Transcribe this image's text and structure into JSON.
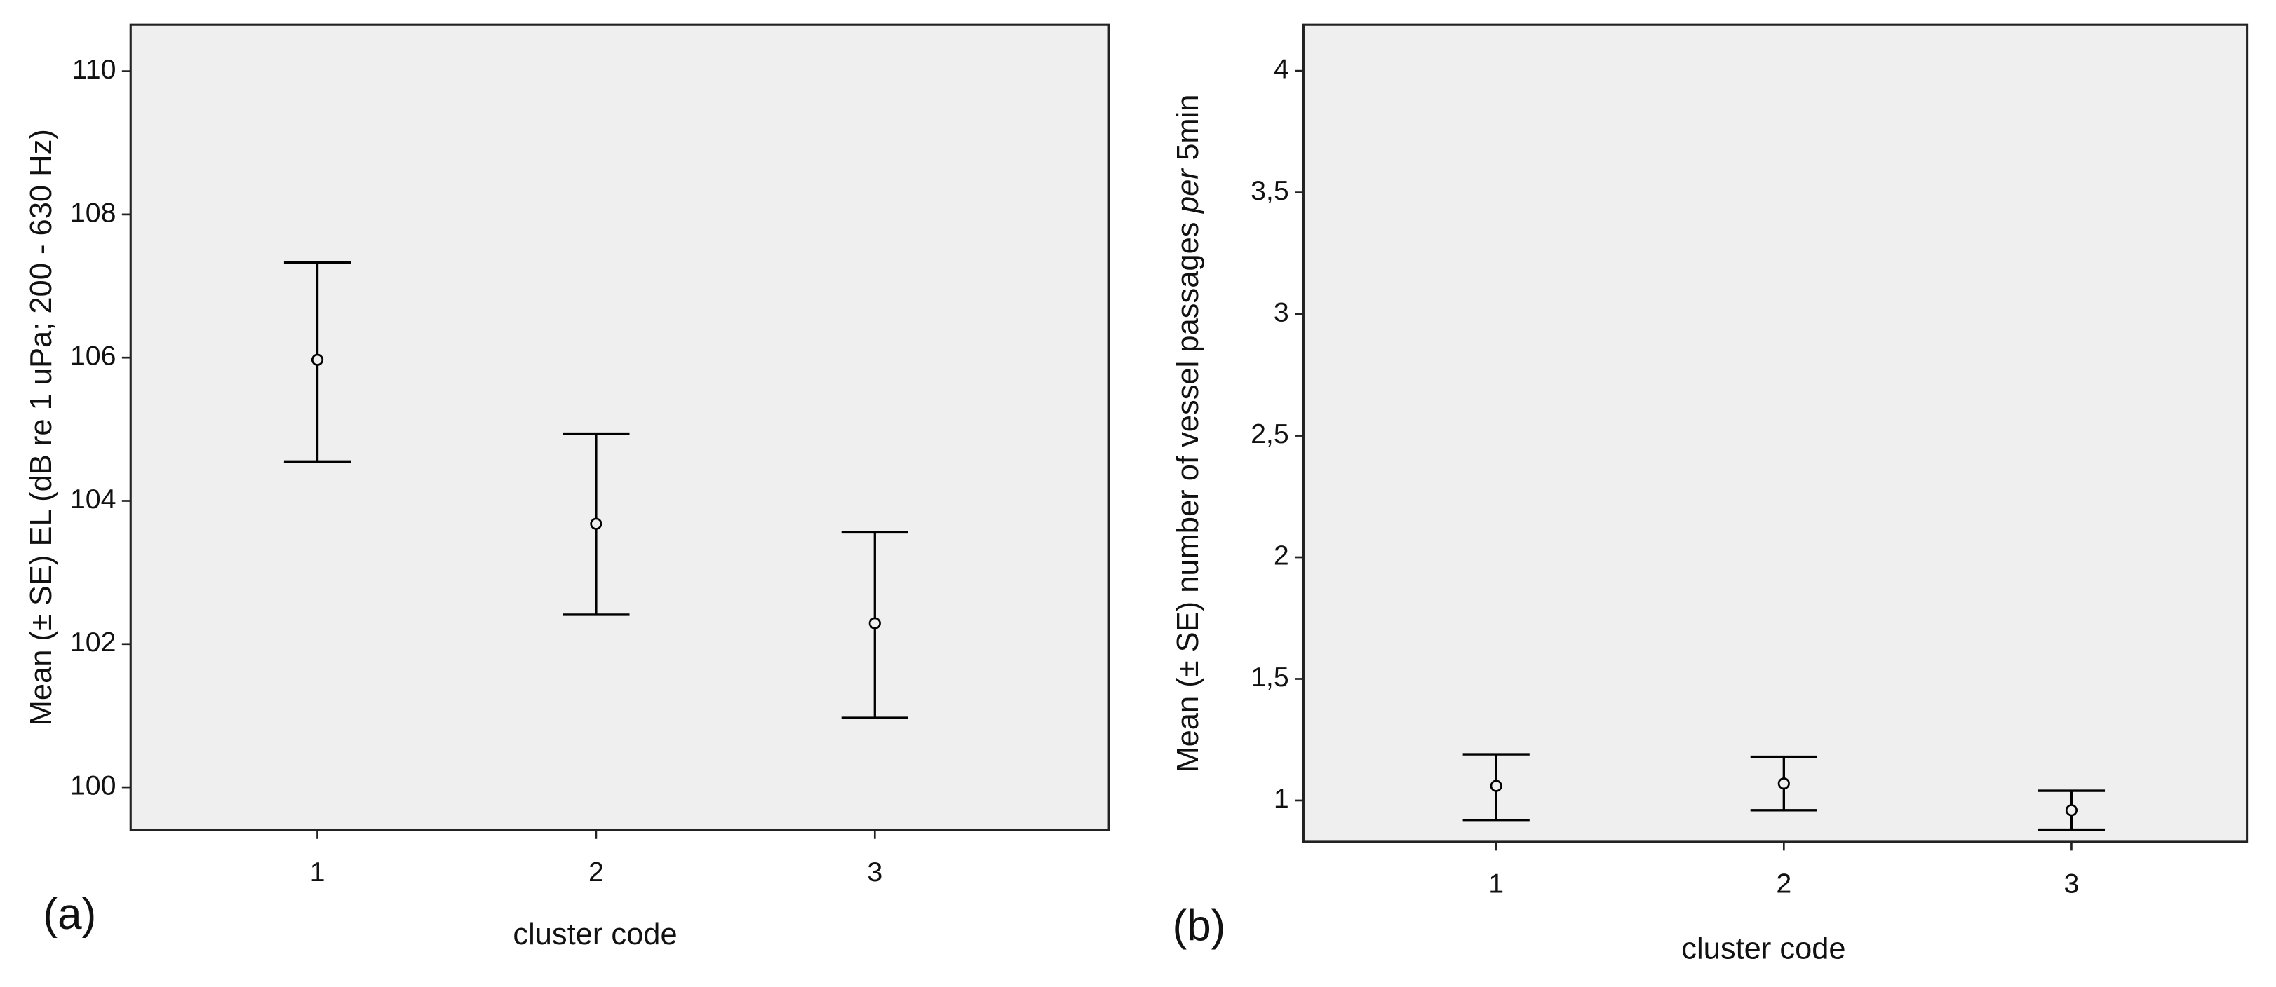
{
  "chart_data": [
    {
      "type": "errorbar",
      "panel_label": "(a)",
      "xlabel": "cluster code",
      "ylabel": [
        "Mean (± SE)  EL  (dB re 1 uPa; 200 - 630 Hz)"
      ],
      "x": [
        1,
        2,
        3
      ],
      "xlim": [
        0.33,
        3.84
      ],
      "xticks": [
        1,
        2,
        3
      ],
      "ylim": [
        99.4,
        110.65
      ],
      "yticks": [
        100,
        102,
        104,
        106,
        108,
        110
      ],
      "series": [
        {
          "color": "#000000",
          "values": [
            105.97,
            103.68,
            102.29
          ],
          "lower": [
            104.55,
            102.41,
            100.97
          ],
          "upper": [
            107.33,
            104.94,
            103.56
          ]
        }
      ]
    },
    {
      "type": "errorbar",
      "panel_label": "(b)",
      "xlabel": "cluster code",
      "ylabel": [
        "Mean (± SE)  number of vessel passages",
        "per",
        "5min"
      ],
      "x": [
        1,
        2,
        3
      ],
      "xlim": [
        0.33,
        3.61
      ],
      "xticks": [
        1,
        2,
        3
      ],
      "ylim": [
        0.83,
        4.19
      ],
      "yticks": [
        1,
        {
          "value": 1.5,
          "label": "1,5"
        },
        2,
        {
          "value": 2.5,
          "label": "2,5"
        },
        3,
        {
          "value": 3.5,
          "label": "3,5"
        },
        4
      ],
      "series": [
        {
          "color": "#000000",
          "values": [
            1.06,
            1.07,
            0.96
          ],
          "lower": [
            0.92,
            0.96,
            0.88
          ],
          "upper": [
            1.19,
            1.18,
            1.04
          ]
        }
      ]
    }
  ]
}
